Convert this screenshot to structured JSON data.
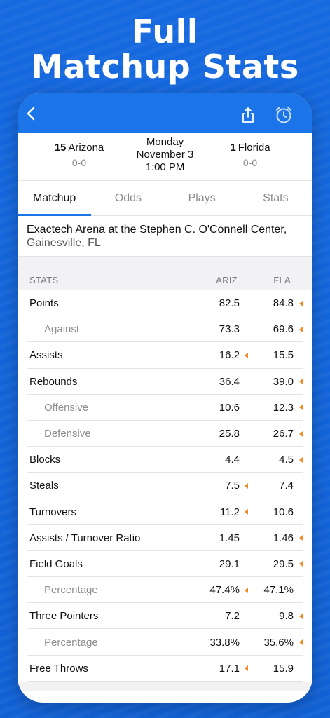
{
  "hero": {
    "line1": "Full",
    "line2": "Matchup Stats"
  },
  "colors": {
    "accent": "#1b74e8",
    "advantage_arrow": "#f08a24",
    "background": "#1565d8"
  },
  "nav": {
    "back_icon": "chevron-left-icon",
    "share_icon": "share-icon",
    "alarm_icon": "alarm-clock-icon"
  },
  "matchup": {
    "away": {
      "rank": "15",
      "name": "Arizona",
      "record": "0-0"
    },
    "home": {
      "rank": "1",
      "name": "Florida",
      "record": "0-0"
    },
    "day": "Monday",
    "date": "November 3",
    "time": "1:00 PM"
  },
  "tabs": [
    {
      "label": "Matchup",
      "active": true
    },
    {
      "label": "Odds",
      "active": false
    },
    {
      "label": "Plays",
      "active": false
    },
    {
      "label": "Stats",
      "active": false
    }
  ],
  "venue": {
    "name": "Exactech Arena at the Stephen C. O'Connell Center,",
    "city": "Gainesville, FL"
  },
  "stats": {
    "header": {
      "label": "STATS",
      "away": "ARIZ",
      "home": "FLA"
    },
    "rows": [
      {
        "label": "Points",
        "away": "82.5",
        "home": "84.8",
        "edge": "home",
        "sub": false
      },
      {
        "label": "Against",
        "away": "73.3",
        "home": "69.6",
        "edge": "home",
        "sub": true
      },
      {
        "label": "Assists",
        "away": "16.2",
        "home": "15.5",
        "edge": "away",
        "sub": false
      },
      {
        "label": "Rebounds",
        "away": "36.4",
        "home": "39.0",
        "edge": "home",
        "sub": false
      },
      {
        "label": "Offensive",
        "away": "10.6",
        "home": "12.3",
        "edge": "home",
        "sub": true
      },
      {
        "label": "Defensive",
        "away": "25.8",
        "home": "26.7",
        "edge": "home",
        "sub": true
      },
      {
        "label": "Blocks",
        "away": "4.4",
        "home": "4.5",
        "edge": "home",
        "sub": false
      },
      {
        "label": "Steals",
        "away": "7.5",
        "home": "7.4",
        "edge": "away",
        "sub": false
      },
      {
        "label": "Turnovers",
        "away": "11.2",
        "home": "10.6",
        "edge": "away",
        "sub": false
      },
      {
        "label": "Assists / Turnover Ratio",
        "away": "1.45",
        "home": "1.46",
        "edge": "home",
        "sub": false
      },
      {
        "label": "Field Goals",
        "away": "29.1",
        "home": "29.5",
        "edge": "home",
        "sub": false
      },
      {
        "label": "Percentage",
        "away": "47.4%",
        "home": "47.1%",
        "edge": "away",
        "sub": true
      },
      {
        "label": "Three Pointers",
        "away": "7.2",
        "home": "9.8",
        "edge": "home",
        "sub": false
      },
      {
        "label": "Percentage",
        "away": "33.8%",
        "home": "35.6%",
        "edge": "home",
        "sub": true
      },
      {
        "label": "Free Throws",
        "away": "17.1",
        "home": "15.9",
        "edge": "away",
        "sub": false
      }
    ]
  }
}
